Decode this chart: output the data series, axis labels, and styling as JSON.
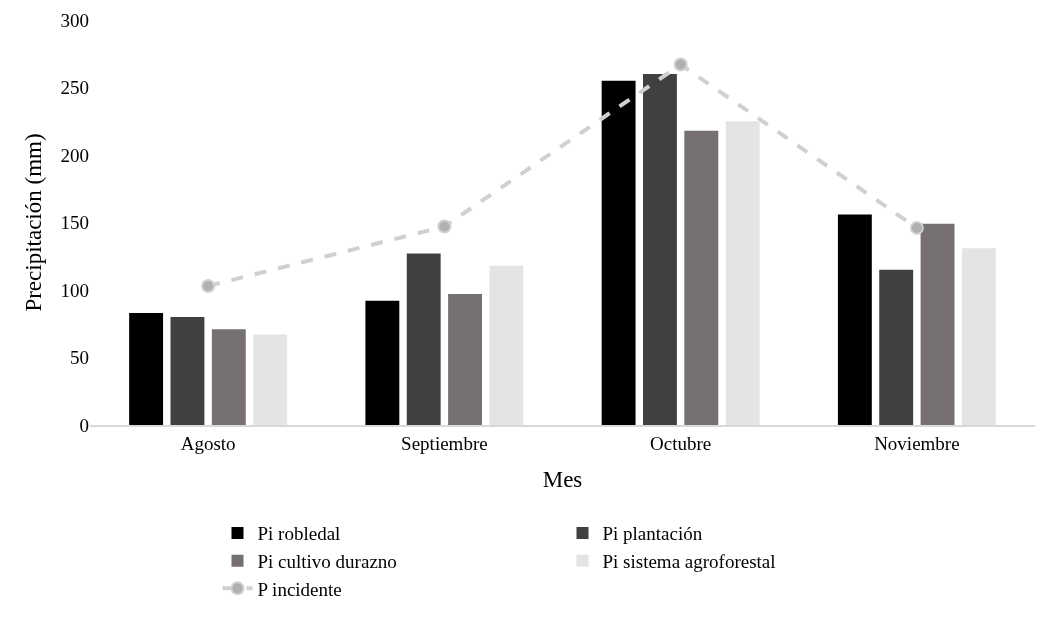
{
  "chart_data": {
    "type": "bar",
    "xlabel": "Mes",
    "ylabel": "Precipitación (mm)",
    "categories": [
      "Agosto",
      "Septiembre",
      "Octubre",
      "Noviembre"
    ],
    "series": [
      {
        "name": "Pi robledal",
        "color": "#000000",
        "values": [
          83,
          92,
          255,
          156
        ]
      },
      {
        "name": "Pi plantación",
        "color": "#404040",
        "values": [
          80,
          127,
          260,
          115
        ]
      },
      {
        "name": "Pi cultivo durazno",
        "color": "#767070",
        "values": [
          71,
          97,
          218,
          149
        ]
      },
      {
        "name": "Pi sistema agroforestal",
        "color": "#e4e4e4",
        "values": [
          67,
          118,
          225,
          131
        ]
      },
      {
        "name": "P incidente",
        "type": "line",
        "color": "#d0d0d0",
        "line_style": "dashed",
        "marker": "circle",
        "values": [
          103,
          147,
          267,
          146
        ]
      }
    ],
    "ylim": [
      0,
      300
    ],
    "yticks": [
      0,
      50,
      100,
      150,
      200,
      250,
      300
    ],
    "grid": false,
    "legend": "bottom"
  }
}
